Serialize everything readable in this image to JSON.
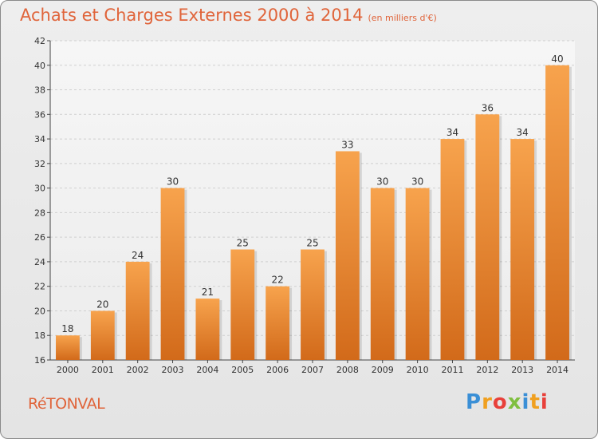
{
  "header": {
    "title": "Achats et Charges Externes 2000 à 2014",
    "subtitle": "(en milliers d'€)"
  },
  "footer": {
    "commune": "RéTONVAL",
    "logo_letters": [
      "P",
      "r",
      "o",
      "x",
      "i",
      "t",
      "i"
    ],
    "logo_colors": [
      "#3a8fd6",
      "#f0a020",
      "#e8403a",
      "#7fbf3f",
      "#3a8fd6",
      "#f0a020",
      "#e8403a"
    ]
  },
  "chart_data": {
    "type": "bar",
    "categories": [
      "2000",
      "2001",
      "2002",
      "2003",
      "2004",
      "2005",
      "2006",
      "2007",
      "2008",
      "2009",
      "2010",
      "2011",
      "2012",
      "2013",
      "2014"
    ],
    "values": [
      18,
      20,
      24,
      30,
      21,
      25,
      22,
      25,
      33,
      30,
      30,
      34,
      36,
      34,
      40
    ],
    "ylim": [
      16,
      42
    ],
    "yticks": [
      16,
      18,
      20,
      22,
      24,
      26,
      28,
      30,
      32,
      34,
      36,
      38,
      40,
      42
    ],
    "grid": true,
    "bar_color_top": "#f7a34d",
    "bar_color_bottom": "#d26a1a",
    "title": "Achats et Charges Externes 2000 à 2014",
    "xlabel": "",
    "ylabel": ""
  }
}
